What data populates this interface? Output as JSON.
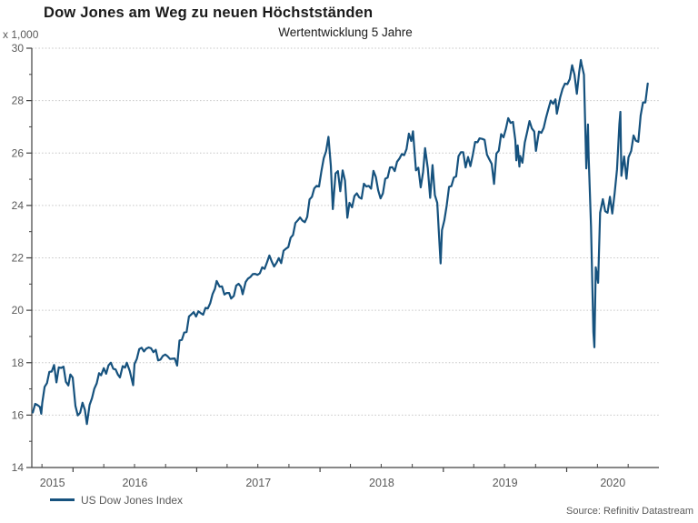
{
  "header": {
    "title": "Dow Jones am Weg zu neuen Höchstständen",
    "subtitle": "Wertentwicklung 5 Jahre",
    "y_axis_unit": "x 1,000",
    "source": "Source: Refinitiv Datastream"
  },
  "legend": {
    "label": "US Dow Jones Index"
  },
  "colors": {
    "line": "#16527E",
    "grid": "#c6c6c6",
    "axis": "#404040",
    "tick_text": "#595959",
    "title_text": "#1a1a1a"
  },
  "chart_data": {
    "type": "line",
    "title": "Dow Jones am Weg zu neuen Höchstständen",
    "subtitle": "Wertentwicklung 5 Jahre",
    "ylabel": "x 1,000",
    "ylim": [
      14,
      30
    ],
    "y_ticks": [
      14,
      16,
      18,
      20,
      22,
      24,
      26,
      28,
      30
    ],
    "x_domain": [
      "2015-09-01",
      "2020-09-30"
    ],
    "x_tick_labels": [
      "2015",
      "2016",
      "2017",
      "2018",
      "2019",
      "2020"
    ],
    "grid": "horizontal-dashed",
    "legend_position": "bottom-left",
    "source": "Source: Refinitiv Datastream",
    "series": [
      {
        "name": "US Dow Jones Index",
        "unit": "index points, thousands",
        "points": [
          [
            "2015-09-04",
            16.1
          ],
          [
            "2015-09-11",
            16.43
          ],
          [
            "2015-09-18",
            16.38
          ],
          [
            "2015-09-25",
            16.31
          ],
          [
            "2015-09-29",
            16.05
          ],
          [
            "2015-10-02",
            16.47
          ],
          [
            "2015-10-09",
            17.08
          ],
          [
            "2015-10-16",
            17.22
          ],
          [
            "2015-10-23",
            17.65
          ],
          [
            "2015-10-30",
            17.66
          ],
          [
            "2015-11-06",
            17.91
          ],
          [
            "2015-11-13",
            17.25
          ],
          [
            "2015-11-20",
            17.82
          ],
          [
            "2015-11-27",
            17.8
          ],
          [
            "2015-12-04",
            17.85
          ],
          [
            "2015-12-11",
            17.27
          ],
          [
            "2015-12-18",
            17.13
          ],
          [
            "2015-12-24",
            17.55
          ],
          [
            "2015-12-31",
            17.43
          ],
          [
            "2016-01-08",
            16.35
          ],
          [
            "2016-01-15",
            15.99
          ],
          [
            "2016-01-22",
            16.09
          ],
          [
            "2016-01-29",
            16.47
          ],
          [
            "2016-02-05",
            16.2
          ],
          [
            "2016-02-11",
            15.66
          ],
          [
            "2016-02-19",
            16.39
          ],
          [
            "2016-02-26",
            16.64
          ],
          [
            "2016-03-04",
            17.01
          ],
          [
            "2016-03-11",
            17.21
          ],
          [
            "2016-03-18",
            17.6
          ],
          [
            "2016-03-24",
            17.52
          ],
          [
            "2016-04-01",
            17.79
          ],
          [
            "2016-04-08",
            17.58
          ],
          [
            "2016-04-15",
            17.9
          ],
          [
            "2016-04-22",
            18.0
          ],
          [
            "2016-04-29",
            17.77
          ],
          [
            "2016-05-06",
            17.74
          ],
          [
            "2016-05-13",
            17.54
          ],
          [
            "2016-05-19",
            17.44
          ],
          [
            "2016-05-27",
            17.87
          ],
          [
            "2016-06-03",
            17.81
          ],
          [
            "2016-06-08",
            18.0
          ],
          [
            "2016-06-17",
            17.68
          ],
          [
            "2016-06-27",
            17.14
          ],
          [
            "2016-07-01",
            17.95
          ],
          [
            "2016-07-08",
            18.15
          ],
          [
            "2016-07-15",
            18.52
          ],
          [
            "2016-07-22",
            18.57
          ],
          [
            "2016-07-29",
            18.43
          ],
          [
            "2016-08-05",
            18.54
          ],
          [
            "2016-08-12",
            18.58
          ],
          [
            "2016-08-19",
            18.55
          ],
          [
            "2016-08-26",
            18.4
          ],
          [
            "2016-09-02",
            18.49
          ],
          [
            "2016-09-09",
            18.09
          ],
          [
            "2016-09-16",
            18.12
          ],
          [
            "2016-09-23",
            18.26
          ],
          [
            "2016-09-30",
            18.31
          ],
          [
            "2016-10-07",
            18.24
          ],
          [
            "2016-10-14",
            18.14
          ],
          [
            "2016-10-21",
            18.15
          ],
          [
            "2016-10-28",
            18.16
          ],
          [
            "2016-11-04",
            17.89
          ],
          [
            "2016-11-11",
            18.85
          ],
          [
            "2016-11-18",
            18.87
          ],
          [
            "2016-11-25",
            19.15
          ],
          [
            "2016-12-02",
            19.17
          ],
          [
            "2016-12-09",
            19.76
          ],
          [
            "2016-12-16",
            19.84
          ],
          [
            "2016-12-23",
            19.93
          ],
          [
            "2016-12-30",
            19.76
          ],
          [
            "2017-01-06",
            19.96
          ],
          [
            "2017-01-13",
            19.89
          ],
          [
            "2017-01-20",
            19.83
          ],
          [
            "2017-01-27",
            20.09
          ],
          [
            "2017-02-03",
            20.07
          ],
          [
            "2017-02-10",
            20.27
          ],
          [
            "2017-02-17",
            20.62
          ],
          [
            "2017-02-24",
            20.82
          ],
          [
            "2017-03-01",
            21.12
          ],
          [
            "2017-03-10",
            20.9
          ],
          [
            "2017-03-17",
            20.91
          ],
          [
            "2017-03-24",
            20.6
          ],
          [
            "2017-03-31",
            20.66
          ],
          [
            "2017-04-07",
            20.66
          ],
          [
            "2017-04-13",
            20.45
          ],
          [
            "2017-04-21",
            20.55
          ],
          [
            "2017-04-28",
            20.94
          ],
          [
            "2017-05-05",
            21.01
          ],
          [
            "2017-05-12",
            20.9
          ],
          [
            "2017-05-17",
            20.61
          ],
          [
            "2017-05-26",
            21.08
          ],
          [
            "2017-06-02",
            21.21
          ],
          [
            "2017-06-09",
            21.27
          ],
          [
            "2017-06-16",
            21.38
          ],
          [
            "2017-06-23",
            21.39
          ],
          [
            "2017-06-30",
            21.35
          ],
          [
            "2017-07-07",
            21.41
          ],
          [
            "2017-07-14",
            21.64
          ],
          [
            "2017-07-21",
            21.58
          ],
          [
            "2017-07-28",
            21.83
          ],
          [
            "2017-08-04",
            22.09
          ],
          [
            "2017-08-11",
            21.86
          ],
          [
            "2017-08-18",
            21.67
          ],
          [
            "2017-08-25",
            21.81
          ],
          [
            "2017-09-01",
            21.99
          ],
          [
            "2017-09-08",
            21.8
          ],
          [
            "2017-09-15",
            22.27
          ],
          [
            "2017-09-22",
            22.35
          ],
          [
            "2017-09-29",
            22.41
          ],
          [
            "2017-10-06",
            22.77
          ],
          [
            "2017-10-13",
            22.87
          ],
          [
            "2017-10-20",
            23.33
          ],
          [
            "2017-10-27",
            23.43
          ],
          [
            "2017-11-03",
            23.54
          ],
          [
            "2017-11-10",
            23.42
          ],
          [
            "2017-11-17",
            23.36
          ],
          [
            "2017-11-24",
            23.56
          ],
          [
            "2017-12-01",
            24.23
          ],
          [
            "2017-12-08",
            24.33
          ],
          [
            "2017-12-15",
            24.65
          ],
          [
            "2017-12-22",
            24.75
          ],
          [
            "2017-12-29",
            24.72
          ],
          [
            "2018-01-05",
            25.3
          ],
          [
            "2018-01-12",
            25.8
          ],
          [
            "2018-01-19",
            26.07
          ],
          [
            "2018-01-26",
            26.62
          ],
          [
            "2018-02-02",
            25.52
          ],
          [
            "2018-02-08",
            23.86
          ],
          [
            "2018-02-16",
            25.22
          ],
          [
            "2018-02-23",
            25.31
          ],
          [
            "2018-03-02",
            24.54
          ],
          [
            "2018-03-09",
            25.34
          ],
          [
            "2018-03-16",
            24.95
          ],
          [
            "2018-03-23",
            23.53
          ],
          [
            "2018-03-29",
            24.1
          ],
          [
            "2018-04-06",
            23.93
          ],
          [
            "2018-04-13",
            24.36
          ],
          [
            "2018-04-20",
            24.46
          ],
          [
            "2018-04-27",
            24.31
          ],
          [
            "2018-05-04",
            24.26
          ],
          [
            "2018-05-11",
            24.83
          ],
          [
            "2018-05-18",
            24.72
          ],
          [
            "2018-05-25",
            24.75
          ],
          [
            "2018-06-01",
            24.64
          ],
          [
            "2018-06-08",
            25.32
          ],
          [
            "2018-06-15",
            25.09
          ],
          [
            "2018-06-22",
            24.58
          ],
          [
            "2018-06-29",
            24.27
          ],
          [
            "2018-07-06",
            24.46
          ],
          [
            "2018-07-13",
            25.02
          ],
          [
            "2018-07-20",
            25.06
          ],
          [
            "2018-07-27",
            25.45
          ],
          [
            "2018-08-03",
            25.46
          ],
          [
            "2018-08-10",
            25.31
          ],
          [
            "2018-08-17",
            25.67
          ],
          [
            "2018-08-24",
            25.79
          ],
          [
            "2018-08-31",
            25.96
          ],
          [
            "2018-09-07",
            25.92
          ],
          [
            "2018-09-14",
            26.15
          ],
          [
            "2018-09-21",
            26.74
          ],
          [
            "2018-09-28",
            26.46
          ],
          [
            "2018-10-03",
            26.83
          ],
          [
            "2018-10-12",
            25.34
          ],
          [
            "2018-10-19",
            25.44
          ],
          [
            "2018-10-26",
            24.69
          ],
          [
            "2018-11-02",
            25.27
          ],
          [
            "2018-11-08",
            26.19
          ],
          [
            "2018-11-16",
            25.41
          ],
          [
            "2018-11-23",
            24.29
          ],
          [
            "2018-11-30",
            25.54
          ],
          [
            "2018-12-07",
            24.39
          ],
          [
            "2018-12-14",
            24.1
          ],
          [
            "2018-12-21",
            22.45
          ],
          [
            "2018-12-24",
            21.79
          ],
          [
            "2018-12-28",
            23.06
          ],
          [
            "2019-01-04",
            23.43
          ],
          [
            "2019-01-11",
            24.0
          ],
          [
            "2019-01-18",
            24.71
          ],
          [
            "2019-01-25",
            24.74
          ],
          [
            "2019-02-01",
            25.06
          ],
          [
            "2019-02-08",
            25.11
          ],
          [
            "2019-02-15",
            25.88
          ],
          [
            "2019-02-22",
            26.03
          ],
          [
            "2019-03-01",
            26.03
          ],
          [
            "2019-03-08",
            25.45
          ],
          [
            "2019-03-15",
            25.85
          ],
          [
            "2019-03-22",
            25.5
          ],
          [
            "2019-03-29",
            25.93
          ],
          [
            "2019-04-05",
            26.42
          ],
          [
            "2019-04-12",
            26.41
          ],
          [
            "2019-04-18",
            26.56
          ],
          [
            "2019-04-26",
            26.54
          ],
          [
            "2019-05-03",
            26.5
          ],
          [
            "2019-05-10",
            25.94
          ],
          [
            "2019-05-17",
            25.76
          ],
          [
            "2019-05-24",
            25.59
          ],
          [
            "2019-05-31",
            24.82
          ],
          [
            "2019-06-07",
            25.98
          ],
          [
            "2019-06-14",
            26.09
          ],
          [
            "2019-06-21",
            26.72
          ],
          [
            "2019-06-28",
            26.6
          ],
          [
            "2019-07-05",
            26.92
          ],
          [
            "2019-07-12",
            27.33
          ],
          [
            "2019-07-19",
            27.15
          ],
          [
            "2019-07-26",
            27.19
          ],
          [
            "2019-08-02",
            26.49
          ],
          [
            "2019-08-05",
            25.72
          ],
          [
            "2019-08-09",
            26.29
          ],
          [
            "2019-08-14",
            25.48
          ],
          [
            "2019-08-16",
            25.89
          ],
          [
            "2019-08-23",
            25.63
          ],
          [
            "2019-08-30",
            26.4
          ],
          [
            "2019-09-06",
            26.8
          ],
          [
            "2019-09-13",
            27.22
          ],
          [
            "2019-09-20",
            26.94
          ],
          [
            "2019-09-27",
            26.82
          ],
          [
            "2019-10-02",
            26.08
          ],
          [
            "2019-10-11",
            26.82
          ],
          [
            "2019-10-18",
            26.77
          ],
          [
            "2019-10-25",
            26.96
          ],
          [
            "2019-11-01",
            27.35
          ],
          [
            "2019-11-08",
            27.68
          ],
          [
            "2019-11-15",
            28.0
          ],
          [
            "2019-11-22",
            27.88
          ],
          [
            "2019-11-29",
            28.05
          ],
          [
            "2019-12-03",
            27.5
          ],
          [
            "2019-12-13",
            28.13
          ],
          [
            "2019-12-20",
            28.45
          ],
          [
            "2019-12-27",
            28.65
          ],
          [
            "2020-01-03",
            28.63
          ],
          [
            "2020-01-10",
            28.82
          ],
          [
            "2020-01-17",
            29.35
          ],
          [
            "2020-01-24",
            28.99
          ],
          [
            "2020-01-31",
            28.26
          ],
          [
            "2020-02-07",
            29.1
          ],
          [
            "2020-02-12",
            29.55
          ],
          [
            "2020-02-14",
            29.4
          ],
          [
            "2020-02-21",
            28.99
          ],
          [
            "2020-02-28",
            25.41
          ],
          [
            "2020-03-04",
            27.09
          ],
          [
            "2020-03-06",
            25.86
          ],
          [
            "2020-03-13",
            23.19
          ],
          [
            "2020-03-20",
            19.17
          ],
          [
            "2020-03-23",
            18.59
          ],
          [
            "2020-03-27",
            21.64
          ],
          [
            "2020-04-03",
            21.05
          ],
          [
            "2020-04-09",
            23.72
          ],
          [
            "2020-04-17",
            24.24
          ],
          [
            "2020-04-24",
            23.78
          ],
          [
            "2020-05-01",
            23.72
          ],
          [
            "2020-05-08",
            24.33
          ],
          [
            "2020-05-15",
            23.69
          ],
          [
            "2020-05-22",
            24.47
          ],
          [
            "2020-05-29",
            25.38
          ],
          [
            "2020-06-05",
            27.11
          ],
          [
            "2020-06-08",
            27.57
          ],
          [
            "2020-06-11",
            25.13
          ],
          [
            "2020-06-19",
            25.87
          ],
          [
            "2020-06-26",
            25.02
          ],
          [
            "2020-07-02",
            25.83
          ],
          [
            "2020-07-10",
            26.08
          ],
          [
            "2020-07-17",
            26.67
          ],
          [
            "2020-07-24",
            26.47
          ],
          [
            "2020-07-31",
            26.43
          ],
          [
            "2020-08-07",
            27.43
          ],
          [
            "2020-08-14",
            27.93
          ],
          [
            "2020-08-21",
            27.93
          ],
          [
            "2020-08-28",
            28.65
          ]
        ]
      }
    ]
  }
}
